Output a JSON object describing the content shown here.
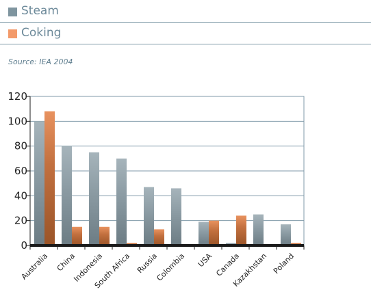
{
  "legend": {
    "steam_label": "Steam",
    "coking_label": "Coking"
  },
  "source": "Source: IEA 2004",
  "colors": {
    "steam": "#7f959f",
    "coking": "#b8683a",
    "legend_steam": "#7f959f",
    "legend_coking": "#f39a6a",
    "axis": "#1a1a1a",
    "grid": "#7f9aa8"
  },
  "chart_data": {
    "type": "bar",
    "categories": [
      "Australia",
      "China",
      "Indonesia",
      "South Africa",
      "Russia",
      "Colombia",
      "USA",
      "Canada",
      "Kazakhstan",
      "Poland"
    ],
    "series": [
      {
        "name": "Steam",
        "values": [
          100,
          80,
          75,
          70,
          47,
          46,
          19,
          2,
          25,
          17
        ]
      },
      {
        "name": "Coking",
        "values": [
          108,
          15,
          15,
          2,
          13,
          0,
          20,
          24,
          0,
          2
        ]
      }
    ],
    "ylim": [
      0,
      120
    ],
    "yticks": [
      0,
      20,
      40,
      60,
      80,
      100,
      120
    ],
    "grid": true,
    "legend": "top"
  }
}
